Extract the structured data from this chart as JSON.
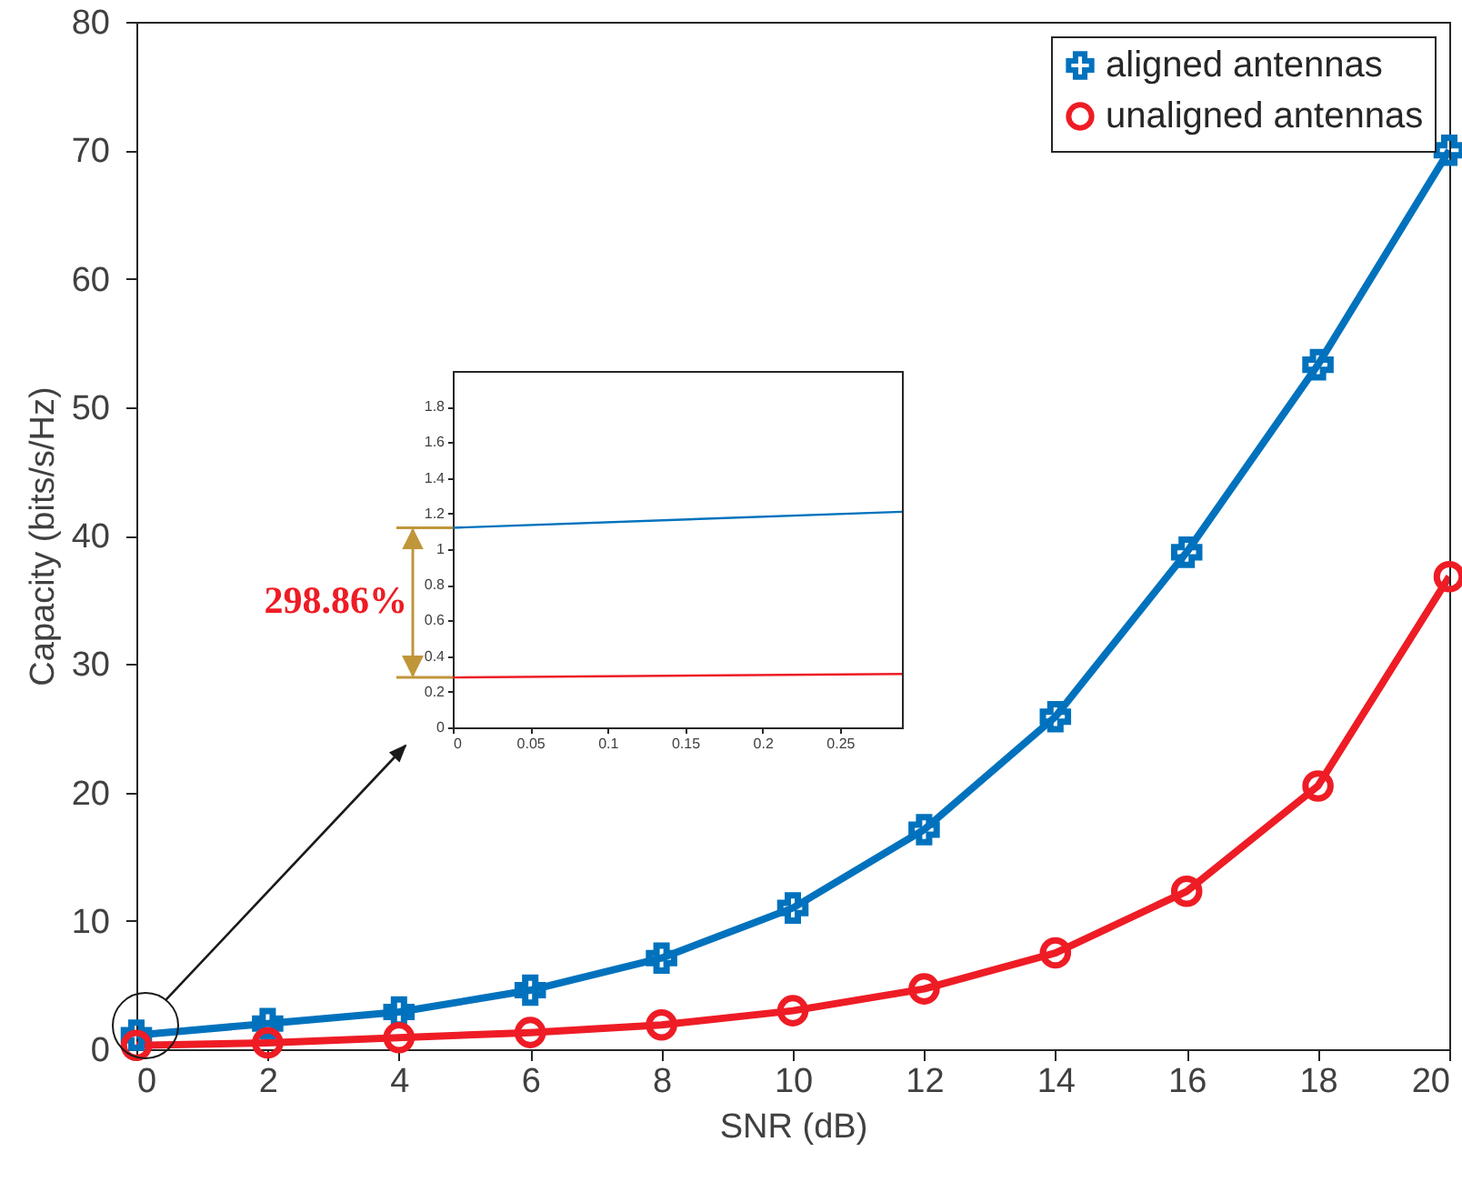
{
  "chart_data": [
    {
      "type": "line",
      "xlabel": "SNR (dB)",
      "ylabel": "Capacity (bits/s/Hz)",
      "x": [
        0,
        2,
        4,
        6,
        8,
        10,
        12,
        14,
        16,
        18,
        20
      ],
      "xlim": [
        0,
        20
      ],
      "xticks": [
        0,
        2,
        4,
        6,
        8,
        10,
        12,
        14,
        16,
        18,
        20
      ],
      "ylim": [
        0,
        80
      ],
      "yticks": [
        0,
        10,
        20,
        30,
        40,
        50,
        60,
        70,
        80
      ],
      "legend": "top right",
      "series": [
        {
          "name": "aligned antennas",
          "color": "#0072bd",
          "marker": "cross",
          "values": [
            1.1,
            2.0,
            2.9,
            4.6,
            7.1,
            11.0,
            17.1,
            25.9,
            38.7,
            53.3,
            70.0
          ]
        },
        {
          "name": "unaligned antennas",
          "color": "#ee1c25",
          "marker": "circle",
          "values": [
            0.3,
            0.5,
            0.9,
            1.3,
            1.9,
            3.0,
            4.7,
            7.5,
            12.3,
            20.5,
            36.8
          ]
        }
      ]
    },
    {
      "type": "line",
      "x": [
        0,
        0.29
      ],
      "xlim": [
        0,
        0.29
      ],
      "xticks": [
        0,
        0.05,
        0.1,
        0.15,
        0.2,
        0.25
      ],
      "ylim": [
        0,
        2
      ],
      "yticks": [
        0,
        0.2,
        0.4,
        0.6,
        0.8,
        1,
        1.2,
        1.4,
        1.6,
        1.8
      ],
      "annotations": [
        "298.86%"
      ],
      "series": [
        {
          "color": "#0072bd",
          "values": [
            1.12,
            1.21
          ]
        },
        {
          "color": "#ee1c25",
          "values": [
            0.28,
            0.3
          ]
        }
      ]
    }
  ]
}
